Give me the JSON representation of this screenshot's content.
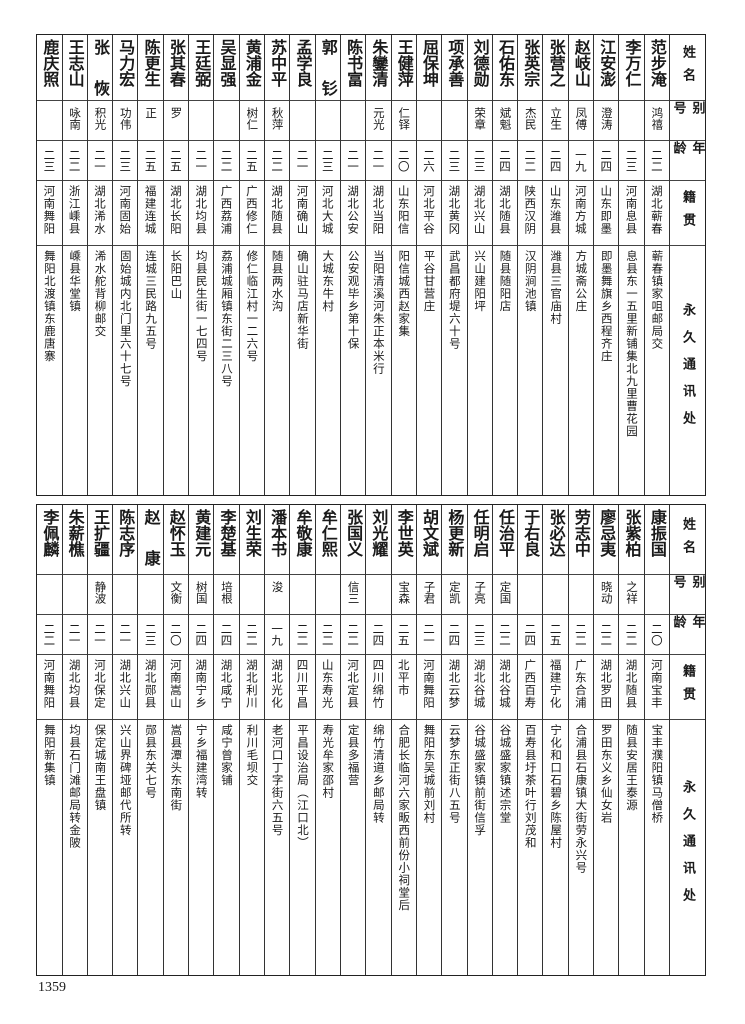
{
  "headers": {
    "name": "姓名",
    "alias": "别号",
    "age": "年龄",
    "origin": "籍贯",
    "address": "永久通讯处"
  },
  "page_number": "1359",
  "top_table": [
    {
      "name": "范步淹",
      "alias": "鸿禧",
      "age": "二二",
      "origin": "湖北蕲春",
      "address": "蕲春镇家咀邮局交"
    },
    {
      "name": "李万仁",
      "alias": "",
      "age": "二三",
      "origin": "河南息县",
      "address": "息县东一五里新铺集北九里曹花园"
    },
    {
      "name": "江安澎",
      "alias": "澄涛",
      "age": "二四",
      "origin": "山东即墨",
      "address": "即墨舞旗乡西程齐庄"
    },
    {
      "name": "赵岐山",
      "alias": "凤傅",
      "age": "一九",
      "origin": "河南方城",
      "address": "方城斋公庄"
    },
    {
      "name": "张营之",
      "alias": "立生",
      "age": "二四",
      "origin": "山东潍县",
      "address": "潍县三官庙村"
    },
    {
      "name": "张英宗",
      "alias": "杰民",
      "age": "二二",
      "origin": "陕西汉阴",
      "address": "汉阴涧池镇"
    },
    {
      "name": "石佑东",
      "alias": "斌魁",
      "age": "二四",
      "origin": "湖北随县",
      "address": "随县随阳店"
    },
    {
      "name": "刘德勋",
      "alias": "荣章",
      "age": "二三",
      "origin": "湖北兴山",
      "address": "兴山建阳坪"
    },
    {
      "name": "项承善",
      "alias": "",
      "age": "二三",
      "origin": "湖北黄冈",
      "address": "武昌都府堤六十号"
    },
    {
      "name": "屈保坤",
      "alias": "",
      "age": "二六",
      "origin": "河北平谷",
      "address": "平谷甘营庄"
    },
    {
      "name": "王健萍",
      "alias": "仁铎",
      "age": "二〇",
      "origin": "山东阳信",
      "address": "阳信城西赵家集"
    },
    {
      "name": "朱鑾清",
      "alias": "元光",
      "age": "二一",
      "origin": "湖北当阳",
      "address": "当阳清溪河朱正本米行"
    },
    {
      "name": "陈书富",
      "alias": "",
      "age": "二一",
      "origin": "湖北公安",
      "address": "公安观毕乡第十保"
    },
    {
      "name": "郭钐",
      "alias": "",
      "age": "二三",
      "origin": "河北大城",
      "address": "大城东牛村"
    },
    {
      "name": "孟学良",
      "alias": "",
      "age": "二一",
      "origin": "河南确山",
      "address": "确山驻马店新华街"
    },
    {
      "name": "苏中平",
      "alias": "秋萍",
      "age": "二二",
      "origin": "湖北随县",
      "address": "随县两水沟"
    },
    {
      "name": "黄浦金",
      "alias": "树仁",
      "age": "二五",
      "origin": "广西修仁",
      "address": "修仁临江村一二六号"
    },
    {
      "name": "吴显强",
      "alias": "",
      "age": "二二",
      "origin": "广西荔浦",
      "address": "荔浦城厢镇东街二三八号"
    },
    {
      "name": "王廷弼",
      "alias": "",
      "age": "二一",
      "origin": "湖北均县",
      "address": "均县民生街一七四号"
    },
    {
      "name": "张其春",
      "alias": "罗",
      "age": "二五",
      "origin": "湖北长阳",
      "address": "长阳巴山"
    },
    {
      "name": "陈更生",
      "alias": "正",
      "age": "二五",
      "origin": "福建连城",
      "address": "连城三民路九五号"
    },
    {
      "name": "马力宏",
      "alias": "功伟",
      "age": "二三",
      "origin": "河南固始",
      "address": "固始城内北门里六十七号"
    },
    {
      "name": "张恢",
      "alias": "积光",
      "age": "二一",
      "origin": "湖北浠水",
      "address": "浠水舵背柳邮交"
    },
    {
      "name": "王志山",
      "alias": "咏南",
      "age": "二二",
      "origin": "浙江嵊县",
      "address": "嵊县华堂镇"
    },
    {
      "name": "鹿庆照",
      "alias": "",
      "age": "二三",
      "origin": "河南舞阳",
      "address": "舞阳北渡镇东鹿唐寨"
    }
  ],
  "bottom_table": [
    {
      "name": "康振国",
      "alias": "",
      "age": "二〇",
      "origin": "河南宝丰",
      "address": "宝丰濮阳镇马僧桥"
    },
    {
      "name": "张紫柏",
      "alias": "之祥",
      "age": "二二",
      "origin": "湖北随县",
      "address": "随县安居王泰源"
    },
    {
      "name": "廖忌夷",
      "alias": "晓动",
      "age": "二二",
      "origin": "湖北罗田",
      "address": "罗田东义乡仙女岩"
    },
    {
      "name": "劳志中",
      "alias": "",
      "age": "二二",
      "origin": "广东合浦",
      "address": "合浦县石康镇大街劳永兴号"
    },
    {
      "name": "张必达",
      "alias": "",
      "age": "二五",
      "origin": "福建宁化",
      "address": "宁化和口石碧乡陈屋村"
    },
    {
      "name": "于右良",
      "alias": "",
      "age": "二四",
      "origin": "广西百寿",
      "address": "百寿县圩茶叶行刘茂和"
    },
    {
      "name": "任治平",
      "alias": "定国",
      "age": "二二",
      "origin": "湖北谷城",
      "address": "谷城盛家镇述宗堂"
    },
    {
      "name": "任明启",
      "alias": "子亮",
      "age": "二三",
      "origin": "湖北谷城",
      "address": "谷城盛家镇前街信孚"
    },
    {
      "name": "杨更新",
      "alias": "定凯",
      "age": "二四",
      "origin": "湖北云梦",
      "address": "云梦东正街八五号"
    },
    {
      "name": "胡文斌",
      "alias": "子君",
      "age": "二一",
      "origin": "河南舞阳",
      "address": "舞阳东吴城前刘村"
    },
    {
      "name": "李世英",
      "alias": "宝森",
      "age": "二五",
      "origin": "北平市",
      "address": "合肥长临河六家畈西前份小祠堂后"
    },
    {
      "name": "刘光耀",
      "alias": "",
      "age": "二四",
      "origin": "四川绵竹",
      "address": "绵竹清道乡邮局转"
    },
    {
      "name": "张国义",
      "alias": "信三",
      "age": "二二",
      "origin": "河北定县",
      "address": "定县多福营"
    },
    {
      "name": "牟仁熙",
      "alias": "",
      "age": "二二",
      "origin": "山东寿光",
      "address": "寿光牟家邵村"
    },
    {
      "name": "牟敬康",
      "alias": "",
      "age": "二二",
      "origin": "四川平昌",
      "address": "平昌设治局（江口北）"
    },
    {
      "name": "潘本书",
      "alias": "浚",
      "age": "一九",
      "origin": "湖北光化",
      "address": "老河口丁字街六五号"
    },
    {
      "name": "刘生荣",
      "alias": "",
      "age": "二二",
      "origin": "湖北利川",
      "address": "利川毛坝交"
    },
    {
      "name": "李楚基",
      "alias": "培根",
      "age": "二四",
      "origin": "湖北咸宁",
      "address": "咸宁曾家铺"
    },
    {
      "name": "黄建元",
      "alias": "树国",
      "age": "二四",
      "origin": "湖南宁乡",
      "address": "宁乡福建湾转"
    },
    {
      "name": "赵怀玉",
      "alias": "文衡",
      "age": "二〇",
      "origin": "河南嵩山",
      "address": "嵩县潭头东南街"
    },
    {
      "name": "赵康",
      "alias": "",
      "age": "二三",
      "origin": "湖北郧县",
      "address": "郧县东关七号"
    },
    {
      "name": "陈志序",
      "alias": "",
      "age": "二一",
      "origin": "湖北兴山",
      "address": "兴山界碑垭邮代所转"
    },
    {
      "name": "王扩疆",
      "alias": "静波",
      "age": "二一",
      "origin": "河北保定",
      "address": "保定城南王盘镇"
    },
    {
      "name": "朱薪樵",
      "alias": "",
      "age": "二一",
      "origin": "湖北均县",
      "address": "均县石门滩邮局转金陂"
    },
    {
      "name": "李佩麟",
      "alias": "",
      "age": "二二",
      "origin": "河南舞阳",
      "address": "舞阳新集镇"
    }
  ]
}
